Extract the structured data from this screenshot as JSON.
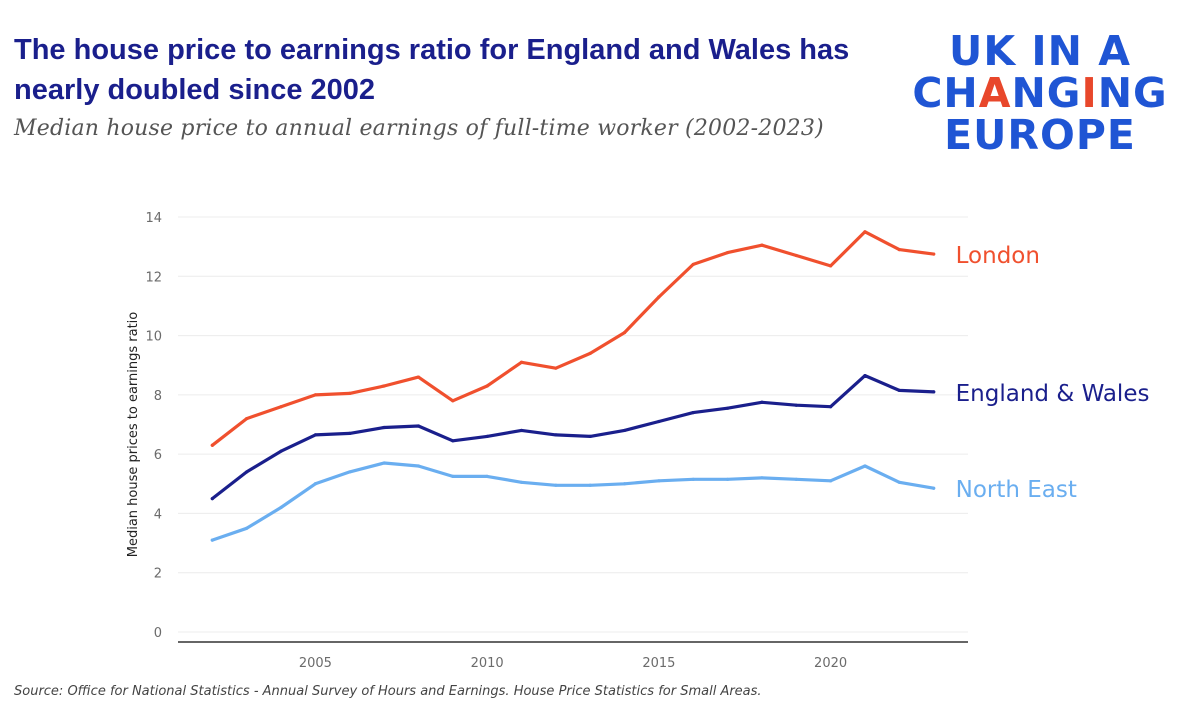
{
  "header": {
    "title": "The house price to earnings ratio for England and Wales has nearly doubled since 2002",
    "subtitle": "Median house price to annual earnings of full-time worker (2002-2023)"
  },
  "logo": {
    "line1": "UK IN A",
    "line2_a": "CH",
    "line2_b": "A",
    "line2_c": "NG",
    "line2_d": "I",
    "line2_e": "NG",
    "line3": "EUROPE"
  },
  "source": "Source: Office for National Statistics - Annual Survey of Hours and Earnings. House Price Statistics for Small Areas.",
  "colors": {
    "title": "#1a1f8c",
    "logo_blue": "#1f55d4",
    "logo_red": "#e8472b",
    "london": "#f0502e",
    "england_wales": "#1a1f8c",
    "north_east": "#6aaef0",
    "grid": "#ececec",
    "axis": "#333333"
  },
  "chart_data": {
    "type": "line",
    "title": "Median house price to annual earnings of full-time worker (2002-2023)",
    "xlabel": "",
    "ylabel": "Median house prices to earnings ratio",
    "xlim": [
      2001,
      2024
    ],
    "ylim": [
      0,
      14
    ],
    "yticks": [
      "0",
      "2",
      "4",
      "6",
      "8",
      "10",
      "12",
      "14"
    ],
    "xticks": [
      "2005",
      "2010",
      "2015",
      "2020"
    ],
    "grid": true,
    "x": [
      2002,
      2003,
      2004,
      2005,
      2006,
      2007,
      2008,
      2009,
      2010,
      2011,
      2012,
      2013,
      2014,
      2015,
      2016,
      2017,
      2018,
      2019,
      2020,
      2021,
      2022,
      2023
    ],
    "series": [
      {
        "name": "London",
        "color_key": "london",
        "values": [
          6.3,
          7.2,
          7.6,
          8.0,
          8.05,
          8.3,
          8.6,
          7.8,
          8.3,
          9.1,
          8.9,
          9.4,
          10.1,
          11.3,
          12.4,
          12.8,
          13.05,
          12.7,
          12.35,
          13.5,
          12.9,
          12.75
        ]
      },
      {
        "name": "England & Wales",
        "color_key": "england_wales",
        "values": [
          4.5,
          5.4,
          6.1,
          6.65,
          6.7,
          6.9,
          6.95,
          6.45,
          6.6,
          6.8,
          6.65,
          6.6,
          6.8,
          7.1,
          7.4,
          7.55,
          7.75,
          7.65,
          7.6,
          8.65,
          8.15,
          8.1
        ]
      },
      {
        "name": "North East",
        "color_key": "north_east",
        "values": [
          3.1,
          3.5,
          4.2,
          5.0,
          5.4,
          5.7,
          5.6,
          5.25,
          5.25,
          5.05,
          4.95,
          4.95,
          5.0,
          5.1,
          5.15,
          5.15,
          5.2,
          5.15,
          5.1,
          5.6,
          5.05,
          4.85
        ]
      }
    ]
  }
}
